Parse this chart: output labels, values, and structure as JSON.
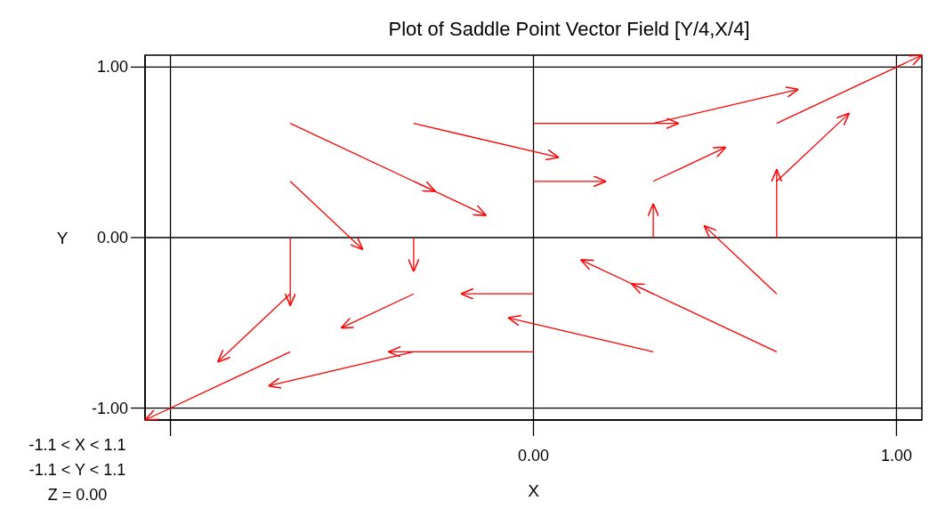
{
  "chart_data": {
    "type": "line",
    "title": "Plot of Saddle Point Vector Field [Y/4,X/4]",
    "xlabel": "X",
    "ylabel": "Y",
    "xlim": [
      -1.07,
      1.07
    ],
    "ylim": [
      -1.07,
      1.07
    ],
    "xticks": [
      {
        "value": -1,
        "label": null
      },
      {
        "value": 0,
        "label": "0.00"
      },
      {
        "value": 1,
        "label": "1.00"
      }
    ],
    "yticks": [
      {
        "value": -1,
        "label": "-1.00"
      },
      {
        "value": 0,
        "label": "0.00"
      },
      {
        "value": 1,
        "label": "1.00"
      }
    ],
    "grid": true,
    "annotations": [
      "-1.1 < X < 1.1",
      "-1.1 < Y < 1.1",
      "Z = 0.00"
    ],
    "series": [
      {
        "color": "#ff0000",
        "x": [
          -0.67,
          -0.27
        ],
        "values": [
          0.67,
          0.27
        ]
      },
      {
        "color": "#ff0000",
        "x": [
          -0.33,
          0.07
        ],
        "values": [
          0.67,
          0.47
        ]
      },
      {
        "color": "#ff0000",
        "x": [
          0,
          0.4
        ],
        "values": [
          0.67,
          0.67
        ]
      },
      {
        "color": "#ff0000",
        "x": [
          0.33,
          0.73
        ],
        "values": [
          0.67,
          0.87
        ]
      },
      {
        "color": "#ff0000",
        "x": [
          0.67,
          1.07
        ],
        "values": [
          0.67,
          1.07
        ]
      },
      {
        "color": "#ff0000",
        "x": [
          -0.67,
          -0.47
        ],
        "values": [
          0.33,
          -0.07
        ]
      },
      {
        "color": "#ff0000",
        "x": [
          -0.33,
          -0.13
        ],
        "values": [
          0.33,
          0.13
        ]
      },
      {
        "color": "#ff0000",
        "x": [
          0,
          0.2
        ],
        "values": [
          0.33,
          0.33
        ]
      },
      {
        "color": "#ff0000",
        "x": [
          0.33,
          0.53
        ],
        "values": [
          0.33,
          0.53
        ]
      },
      {
        "color": "#ff0000",
        "x": [
          0.67,
          0.87
        ],
        "values": [
          0.33,
          0.73
        ]
      },
      {
        "color": "#ff0000",
        "x": [
          -0.67,
          -0.67
        ],
        "values": [
          0,
          -0.4
        ]
      },
      {
        "color": "#ff0000",
        "x": [
          -0.33,
          -0.33
        ],
        "values": [
          0,
          -0.2
        ]
      },
      {
        "color": "#ff0000",
        "x": [
          0.33,
          0.33
        ],
        "values": [
          0,
          0.2
        ]
      },
      {
        "color": "#ff0000",
        "x": [
          0.67,
          0.67
        ],
        "values": [
          0,
          0.4
        ]
      },
      {
        "color": "#ff0000",
        "x": [
          -0.67,
          -0.87
        ],
        "values": [
          -0.33,
          -0.73
        ]
      },
      {
        "color": "#ff0000",
        "x": [
          -0.33,
          -0.53
        ],
        "values": [
          -0.33,
          -0.53
        ]
      },
      {
        "color": "#ff0000",
        "x": [
          0,
          -0.2
        ],
        "values": [
          -0.33,
          -0.33
        ]
      },
      {
        "color": "#ff0000",
        "x": [
          0.33,
          0.13
        ],
        "values": [
          -0.33,
          -0.13
        ]
      },
      {
        "color": "#ff0000",
        "x": [
          0.67,
          0.47
        ],
        "values": [
          -0.33,
          0.07
        ]
      },
      {
        "color": "#ff0000",
        "x": [
          -0.67,
          -1.07
        ],
        "values": [
          -0.67,
          -1.07
        ]
      },
      {
        "color": "#ff0000",
        "x": [
          -0.33,
          -0.73
        ],
        "values": [
          -0.67,
          -0.87
        ]
      },
      {
        "color": "#ff0000",
        "x": [
          0,
          -0.4
        ],
        "values": [
          -0.67,
          -0.67
        ]
      },
      {
        "color": "#ff0000",
        "x": [
          0.33,
          -0.07
        ],
        "values": [
          -0.67,
          -0.47
        ]
      },
      {
        "color": "#ff0000",
        "x": [
          0.67,
          0.27
        ],
        "values": [
          -0.67,
          -0.27
        ]
      }
    ]
  }
}
